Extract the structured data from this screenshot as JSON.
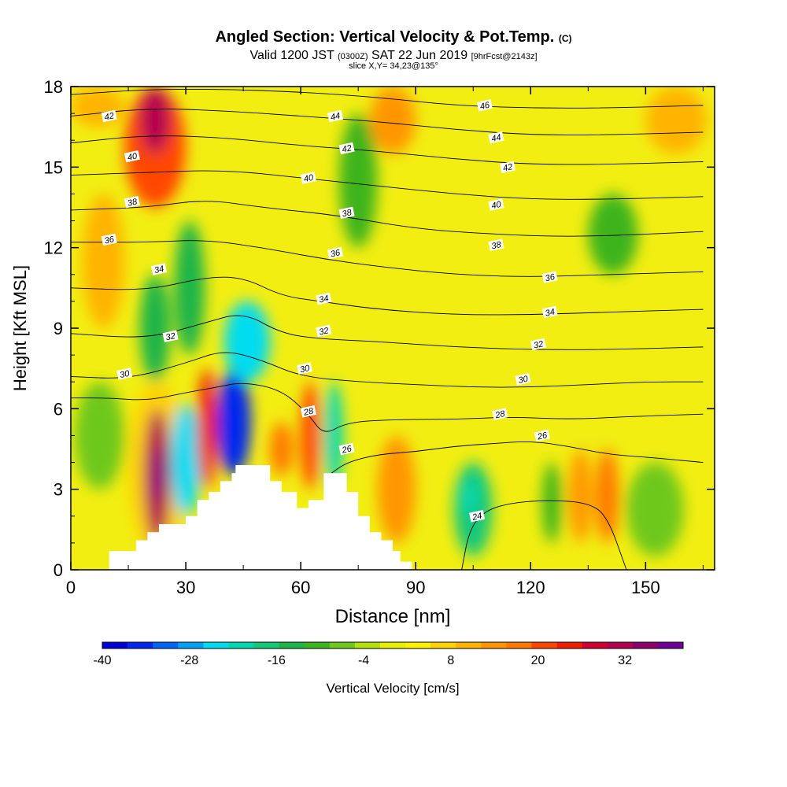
{
  "title": {
    "main": "Angled Section: Vertical Velocity & Pot.Temp.",
    "copyright": "(C)",
    "valid_prefix": "Valid 1200 JST",
    "valid_utc": "(0300Z)",
    "valid_date": "SAT 22 Jun 2019",
    "forecast": "[9hrFcst@2143z]",
    "slice": "slice X,Y= 34,23@135°"
  },
  "chart_data": {
    "type": "heatmap",
    "title": "Angled Section: Vertical Velocity & Pot.Temp.",
    "xlabel": "Distance [nm]",
    "ylabel": "Height [Kft MSL]",
    "xlim": [
      0,
      168
    ],
    "ylim": [
      0,
      18
    ],
    "x_ticks": [
      0,
      30,
      60,
      90,
      120,
      150
    ],
    "y_ticks": [
      0,
      3,
      6,
      9,
      12,
      15,
      18
    ],
    "colorbar": {
      "label": "Vertical Velocity [cm/s]",
      "min": -40,
      "max": 40,
      "step": 4,
      "tick_labels": [
        -40,
        -28,
        -16,
        -4,
        8,
        20,
        32
      ],
      "colors": [
        "#0000d8",
        "#0028ee",
        "#0064f5",
        "#00a0f5",
        "#00dcf0",
        "#00d8b4",
        "#14c878",
        "#1eb44a",
        "#3cb41e",
        "#6ec81e",
        "#b4e10a",
        "#e6f000",
        "#fff000",
        "#ffd200",
        "#ffb400",
        "#ff9600",
        "#ff7800",
        "#ff4600",
        "#f01e00",
        "#d20032",
        "#b40050",
        "#8c006e",
        "#6e0096"
      ]
    },
    "field_background": "#f2ee12",
    "vertical_velocity_cells": [
      {
        "x": [
          15,
          30
        ],
        "y": [
          0.5,
          7
        ],
        "value": 6
      },
      {
        "x": [
          1,
          14
        ],
        "y": [
          3,
          7
        ],
        "value": -6
      },
      {
        "x": [
          19,
          26
        ],
        "y": [
          1,
          6
        ],
        "value": 30
      },
      {
        "x": [
          21.5,
          23.5
        ],
        "y": [
          2.5,
          4.5
        ],
        "value": 38
      },
      {
        "x": [
          26,
          34
        ],
        "y": [
          2,
          6.2
        ],
        "value": -24
      },
      {
        "x": [
          33,
          38
        ],
        "y": [
          3,
          7.5
        ],
        "value": 24
      },
      {
        "x": [
          38,
          47
        ],
        "y": [
          3.5,
          7.5
        ],
        "value": -36
      },
      {
        "x": [
          40,
          52
        ],
        "y": [
          7,
          10
        ],
        "value": -26
      },
      {
        "x": [
          52,
          58
        ],
        "y": [
          3.5,
          5.5
        ],
        "value": 18
      },
      {
        "x": [
          60,
          65
        ],
        "y": [
          3,
          7
        ],
        "value": 20
      },
      {
        "x": [
          66,
          71
        ],
        "y": [
          3,
          7
        ],
        "value": -22
      },
      {
        "x": [
          80,
          90
        ],
        "y": [
          1,
          5
        ],
        "value": 14
      },
      {
        "x": [
          100,
          110
        ],
        "y": [
          0.5,
          4
        ],
        "value": -16
      },
      {
        "x": [
          102,
          106
        ],
        "y": [
          2,
          3.4
        ],
        "value": -22
      },
      {
        "x": [
          123,
          128
        ],
        "y": [
          1,
          4
        ],
        "value": -10
      },
      {
        "x": [
          130,
          136
        ],
        "y": [
          1,
          4.5
        ],
        "value": 14
      },
      {
        "x": [
          137,
          143
        ],
        "y": [
          1,
          4.5
        ],
        "value": 16
      },
      {
        "x": [
          14,
          30
        ],
        "y": [
          13.5,
          18
        ],
        "value": 22
      },
      {
        "x": [
          18,
          26
        ],
        "y": [
          15.5,
          18
        ],
        "value": 30
      },
      {
        "x": [
          18,
          26
        ],
        "y": [
          7,
          11
        ],
        "value": -14
      },
      {
        "x": [
          27,
          35
        ],
        "y": [
          8,
          13
        ],
        "value": -14
      },
      {
        "x": [
          3,
          14
        ],
        "y": [
          9,
          14
        ],
        "value": 12
      },
      {
        "x": [
          70,
          80
        ],
        "y": [
          12,
          17
        ],
        "value": -12
      },
      {
        "x": [
          135,
          148
        ],
        "y": [
          11,
          14
        ],
        "value": -10
      },
      {
        "x": [
          145,
          160
        ],
        "y": [
          0.5,
          4
        ],
        "value": -8
      },
      {
        "x": [
          0,
          14
        ],
        "y": [
          16.5,
          18
        ],
        "value": 10
      },
      {
        "x": [
          78,
          90
        ],
        "y": [
          15.5,
          18
        ],
        "value": 14
      },
      {
        "x": [
          150,
          166
        ],
        "y": [
          15.5,
          18
        ],
        "value": 12
      }
    ],
    "terrain": [
      {
        "x": 0,
        "h": 0
      },
      {
        "x": 10,
        "h": 0
      },
      {
        "x": 10,
        "h": 0.7
      },
      {
        "x": 17,
        "h": 0.7
      },
      {
        "x": 17,
        "h": 1.1
      },
      {
        "x": 20,
        "h": 1.1
      },
      {
        "x": 20,
        "h": 1.4
      },
      {
        "x": 23,
        "h": 1.4
      },
      {
        "x": 23,
        "h": 1.7
      },
      {
        "x": 30,
        "h": 1.7
      },
      {
        "x": 30,
        "h": 2.0
      },
      {
        "x": 33,
        "h": 2.0
      },
      {
        "x": 33,
        "h": 2.6
      },
      {
        "x": 36,
        "h": 2.6
      },
      {
        "x": 36,
        "h": 2.9
      },
      {
        "x": 39,
        "h": 2.9
      },
      {
        "x": 39,
        "h": 3.3
      },
      {
        "x": 42,
        "h": 3.3
      },
      {
        "x": 42,
        "h": 3.6
      },
      {
        "x": 43,
        "h": 3.6
      },
      {
        "x": 43,
        "h": 3.9
      },
      {
        "x": 52,
        "h": 3.9
      },
      {
        "x": 52,
        "h": 3.3
      },
      {
        "x": 55,
        "h": 3.3
      },
      {
        "x": 55,
        "h": 2.9
      },
      {
        "x": 59,
        "h": 2.9
      },
      {
        "x": 59,
        "h": 2.3
      },
      {
        "x": 62,
        "h": 2.3
      },
      {
        "x": 62,
        "h": 2.6
      },
      {
        "x": 66,
        "h": 2.6
      },
      {
        "x": 66,
        "h": 3.6
      },
      {
        "x": 72,
        "h": 3.6
      },
      {
        "x": 72,
        "h": 2.9
      },
      {
        "x": 75,
        "h": 2.9
      },
      {
        "x": 75,
        "h": 2.0
      },
      {
        "x": 78,
        "h": 2.0
      },
      {
        "x": 78,
        "h": 1.4
      },
      {
        "x": 81,
        "h": 1.4
      },
      {
        "x": 81,
        "h": 1.1
      },
      {
        "x": 84,
        "h": 1.1
      },
      {
        "x": 84,
        "h": 0.7
      },
      {
        "x": 86,
        "h": 0.7
      },
      {
        "x": 86,
        "h": 0.3
      },
      {
        "x": 89,
        "h": 0.3
      },
      {
        "x": 89,
        "h": 0
      },
      {
        "x": 168,
        "h": 0
      }
    ],
    "pot_temp_contours": [
      {
        "value": 24,
        "points": [
          [
            102,
            0
          ],
          [
            104,
            1.5
          ],
          [
            108,
            2.2
          ],
          [
            115,
            2.5
          ],
          [
            125,
            2.6
          ],
          [
            135,
            2.5
          ],
          [
            140,
            2.0
          ],
          [
            145,
            0
          ]
        ]
      },
      {
        "value": 26,
        "points": [
          [
            68,
            3.6
          ],
          [
            72,
            4
          ],
          [
            80,
            4.3
          ],
          [
            90,
            4.4
          ],
          [
            100,
            4.6
          ],
          [
            110,
            4.7
          ],
          [
            120,
            4.8
          ],
          [
            130,
            4.6
          ],
          [
            140,
            4.3
          ],
          [
            150,
            4.2
          ],
          [
            165,
            4.0
          ]
        ]
      },
      {
        "value": 28,
        "points": [
          [
            0,
            6.4
          ],
          [
            10,
            6.4
          ],
          [
            20,
            6.3
          ],
          [
            30,
            6.6
          ],
          [
            38,
            6.8
          ],
          [
            45,
            7
          ],
          [
            55,
            6.7
          ],
          [
            62,
            5.8
          ],
          [
            66,
            5
          ],
          [
            72,
            5.5
          ],
          [
            85,
            5.6
          ],
          [
            100,
            5.6
          ],
          [
            115,
            5.7
          ],
          [
            130,
            5.6
          ],
          [
            145,
            5.7
          ],
          [
            165,
            5.8
          ]
        ]
      },
      {
        "value": 30,
        "points": [
          [
            0,
            7.2
          ],
          [
            15,
            7.1
          ],
          [
            30,
            7.7
          ],
          [
            40,
            8.2
          ],
          [
            50,
            7.8
          ],
          [
            60,
            7.2
          ],
          [
            75,
            7
          ],
          [
            90,
            6.9
          ],
          [
            105,
            6.8
          ],
          [
            120,
            6.8
          ],
          [
            135,
            6.9
          ],
          [
            150,
            7
          ],
          [
            165,
            7
          ]
        ]
      },
      {
        "value": 32,
        "points": [
          [
            0,
            8.8
          ],
          [
            20,
            8.6
          ],
          [
            35,
            9.2
          ],
          [
            45,
            9.6
          ],
          [
            55,
            8.8
          ],
          [
            65,
            8.6
          ],
          [
            80,
            8.5
          ],
          [
            100,
            8.3
          ],
          [
            120,
            8.2
          ],
          [
            140,
            8.2
          ],
          [
            165,
            8.3
          ]
        ]
      },
      {
        "value": 34,
        "points": [
          [
            0,
            10.5
          ],
          [
            20,
            10.4
          ],
          [
            35,
            10.9
          ],
          [
            45,
            10.9
          ],
          [
            55,
            10.2
          ],
          [
            65,
            10
          ],
          [
            80,
            9.7
          ],
          [
            100,
            9.5
          ],
          [
            120,
            9.5
          ],
          [
            140,
            9.6
          ],
          [
            165,
            9.7
          ]
        ]
      },
      {
        "value": 36,
        "points": [
          [
            0,
            12.2
          ],
          [
            20,
            12.2
          ],
          [
            35,
            12.3
          ],
          [
            50,
            12
          ],
          [
            65,
            11.6
          ],
          [
            80,
            11.3
          ],
          [
            100,
            11
          ],
          [
            120,
            10.9
          ],
          [
            140,
            11
          ],
          [
            165,
            11.1
          ]
        ]
      },
      {
        "value": 38,
        "points": [
          [
            0,
            13.4
          ],
          [
            20,
            13.5
          ],
          [
            35,
            13.8
          ],
          [
            50,
            13.5
          ],
          [
            70,
            13.2
          ],
          [
            90,
            12.7
          ],
          [
            110,
            12.5
          ],
          [
            130,
            12.4
          ],
          [
            150,
            12.5
          ],
          [
            165,
            12.6
          ]
        ]
      },
      {
        "value": 40,
        "points": [
          [
            0,
            14.7
          ],
          [
            20,
            14.8
          ],
          [
            40,
            14.9
          ],
          [
            60,
            14.6
          ],
          [
            80,
            14.3
          ],
          [
            100,
            14
          ],
          [
            120,
            13.8
          ],
          [
            140,
            13.8
          ],
          [
            165,
            13.9
          ]
        ]
      },
      {
        "value": 42,
        "points": [
          [
            0,
            15.9
          ],
          [
            20,
            16.2
          ],
          [
            40,
            16.1
          ],
          [
            60,
            15.8
          ],
          [
            80,
            15.6
          ],
          [
            100,
            15.3
          ],
          [
            120,
            15.1
          ],
          [
            140,
            15.1
          ],
          [
            165,
            15.2
          ]
        ]
      },
      {
        "value": 44,
        "points": [
          [
            0,
            16.9
          ],
          [
            20,
            17.2
          ],
          [
            40,
            17.1
          ],
          [
            60,
            16.9
          ],
          [
            80,
            16.7
          ],
          [
            100,
            16.4
          ],
          [
            120,
            16.2
          ],
          [
            140,
            16.2
          ],
          [
            165,
            16.3
          ]
        ]
      },
      {
        "value": 46,
        "points": [
          [
            0,
            17.7
          ],
          [
            20,
            17.9
          ],
          [
            40,
            17.9
          ],
          [
            60,
            17.8
          ],
          [
            80,
            17.6
          ],
          [
            100,
            17.3
          ],
          [
            120,
            17.2
          ],
          [
            140,
            17.2
          ],
          [
            165,
            17.3
          ]
        ]
      }
    ],
    "contour_labels": [
      {
        "text": "42",
        "x": 10,
        "y": 16.9
      },
      {
        "text": "40",
        "x": 16,
        "y": 15.4
      },
      {
        "text": "38",
        "x": 16,
        "y": 13.7
      },
      {
        "text": "36",
        "x": 10,
        "y": 12.3
      },
      {
        "text": "34",
        "x": 23,
        "y": 11.2
      },
      {
        "text": "32",
        "x": 26,
        "y": 8.7
      },
      {
        "text": "30",
        "x": 14,
        "y": 7.3
      },
      {
        "text": "44",
        "x": 69,
        "y": 16.9
      },
      {
        "text": "42",
        "x": 72,
        "y": 15.7
      },
      {
        "text": "40",
        "x": 62,
        "y": 14.6
      },
      {
        "text": "38",
        "x": 72,
        "y": 13.3
      },
      {
        "text": "36",
        "x": 69,
        "y": 11.8
      },
      {
        "text": "34",
        "x": 66,
        "y": 10.1
      },
      {
        "text": "32",
        "x": 66,
        "y": 8.9
      },
      {
        "text": "30",
        "x": 61,
        "y": 7.5
      },
      {
        "text": "28",
        "x": 62,
        "y": 5.9
      },
      {
        "text": "26",
        "x": 72,
        "y": 4.5
      },
      {
        "text": "46",
        "x": 108,
        "y": 17.3
      },
      {
        "text": "44",
        "x": 111,
        "y": 16.1
      },
      {
        "text": "42",
        "x": 114,
        "y": 15.0
      },
      {
        "text": "40",
        "x": 111,
        "y": 13.6
      },
      {
        "text": "38",
        "x": 111,
        "y": 12.1
      },
      {
        "text": "36",
        "x": 125,
        "y": 10.9
      },
      {
        "text": "34",
        "x": 125,
        "y": 9.6
      },
      {
        "text": "32",
        "x": 122,
        "y": 8.4
      },
      {
        "text": "30",
        "x": 118,
        "y": 7.1
      },
      {
        "text": "28",
        "x": 112,
        "y": 5.8
      },
      {
        "text": "26",
        "x": 123,
        "y": 5.0
      },
      {
        "text": "24",
        "x": 106,
        "y": 2.0
      }
    ]
  }
}
